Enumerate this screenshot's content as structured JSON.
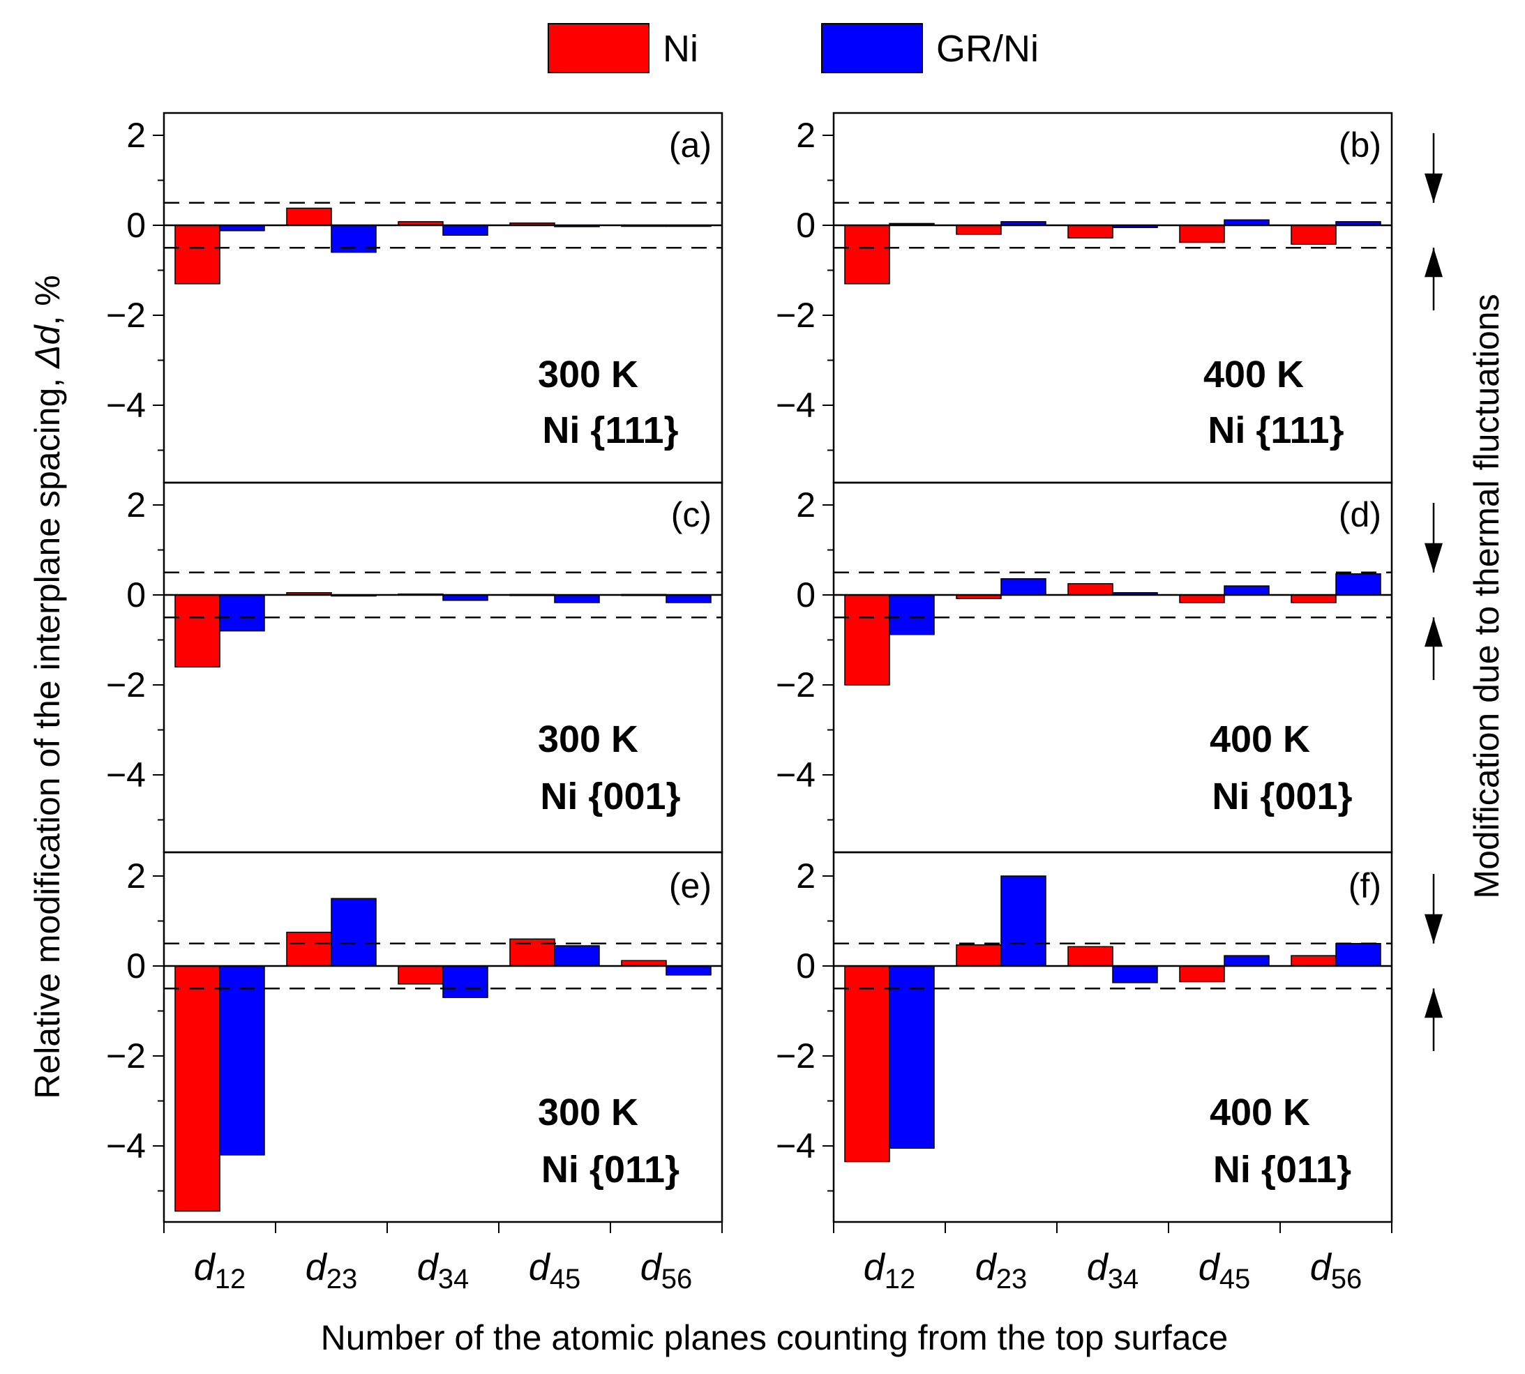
{
  "chart_data": {
    "type": "bar",
    "legend": [
      {
        "name": "Ni",
        "color": "#ff0000"
      },
      {
        "name": "GR/Ni",
        "color": "#0000ff"
      }
    ],
    "categories": [
      {
        "base": "d",
        "sub": "12"
      },
      {
        "base": "d",
        "sub": "23"
      },
      {
        "base": "d",
        "sub": "34"
      },
      {
        "base": "d",
        "sub": "45"
      },
      {
        "base": "d",
        "sub": "56"
      }
    ],
    "ylabel_prefix": "Relative modification of the interplane spacing, ",
    "ylabel_symbol": "Δd",
    "ylabel_suffix": ", %",
    "xlabel": "Number of the atomic planes counting from the top surface",
    "right_label": "Modification due to thermal fluctuations",
    "ylim": [
      -6.0,
      2.5
    ],
    "yticks": [
      2,
      0,
      -2,
      -4
    ],
    "ytick_labels": [
      "2",
      "0",
      "−2",
      "−4"
    ],
    "threshold": 0.5,
    "panels": [
      {
        "letter": "(a)",
        "temp": "300 K",
        "plane": "Ni {111}",
        "series": [
          {
            "name": "Ni",
            "values": [
              -1.3,
              0.38,
              0.08,
              0.05,
              0.0
            ]
          },
          {
            "name": "GR/Ni",
            "values": [
              -0.12,
              -0.6,
              -0.22,
              -0.03,
              -0.02
            ]
          }
        ]
      },
      {
        "letter": "(b)",
        "temp": "400 K",
        "plane": "Ni {111}",
        "series": [
          {
            "name": "Ni",
            "values": [
              -1.3,
              -0.2,
              -0.28,
              -0.38,
              -0.42
            ]
          },
          {
            "name": "GR/Ni",
            "values": [
              0.04,
              0.08,
              -0.05,
              0.12,
              0.08
            ]
          }
        ]
      },
      {
        "letter": "(c)",
        "temp": "300 K",
        "plane": "Ni {001}",
        "series": [
          {
            "name": "Ni",
            "values": [
              -1.6,
              0.05,
              0.02,
              0.01,
              0.01
            ]
          },
          {
            "name": "GR/Ni",
            "values": [
              -0.8,
              -0.02,
              -0.12,
              -0.17,
              -0.17
            ]
          }
        ]
      },
      {
        "letter": "(d)",
        "temp": "400 K",
        "plane": "Ni {001}",
        "series": [
          {
            "name": "Ni",
            "values": [
              -2.0,
              -0.08,
              0.25,
              -0.17,
              -0.17
            ]
          },
          {
            "name": "GR/Ni",
            "values": [
              -0.88,
              0.36,
              0.05,
              0.2,
              0.47
            ]
          }
        ]
      },
      {
        "letter": "(e)",
        "temp": "300 K",
        "plane": "Ni {011}",
        "series": [
          {
            "name": "Ni",
            "values": [
              -5.45,
              0.75,
              -0.4,
              0.6,
              0.12
            ]
          },
          {
            "name": "GR/Ni",
            "values": [
              -4.2,
              1.5,
              -0.7,
              0.45,
              -0.2
            ]
          }
        ]
      },
      {
        "letter": "(f)",
        "temp": "400 K",
        "plane": "Ni {011}",
        "series": [
          {
            "name": "Ni",
            "values": [
              -4.35,
              0.47,
              0.43,
              -0.35,
              0.23
            ]
          },
          {
            "name": "GR/Ni",
            "values": [
              -4.05,
              2.0,
              -0.37,
              0.23,
              0.5
            ]
          }
        ]
      }
    ]
  }
}
